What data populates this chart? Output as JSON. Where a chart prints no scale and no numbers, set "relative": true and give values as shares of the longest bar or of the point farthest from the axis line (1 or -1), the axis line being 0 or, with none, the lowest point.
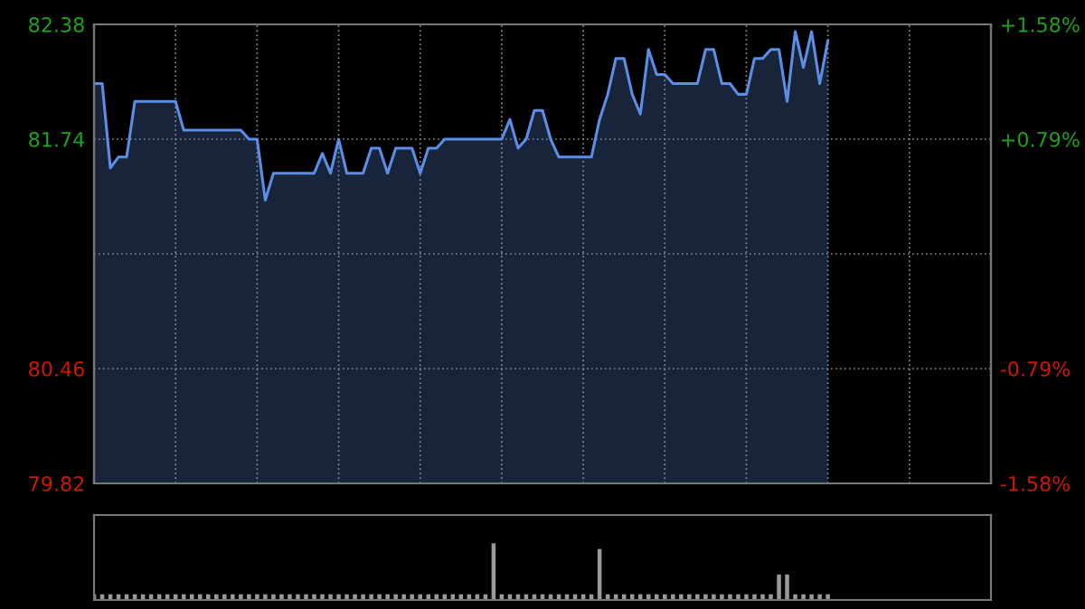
{
  "chart_data": [
    {
      "type": "area",
      "categories": [
        null,
        null,
        null,
        null,
        null,
        null,
        null,
        null,
        null,
        null,
        null,
        null,
        null,
        null,
        null,
        null,
        null,
        null,
        null,
        null,
        null,
        null,
        null,
        null,
        null,
        null,
        null,
        null,
        null,
        null,
        null,
        null,
        null,
        null,
        null,
        null,
        null,
        null,
        null,
        null,
        null,
        null,
        null,
        null,
        null,
        null,
        null,
        null,
        null,
        null,
        null,
        null,
        null,
        null,
        null,
        null,
        null,
        null,
        null,
        null,
        null,
        null,
        null,
        null,
        null,
        null,
        null,
        null,
        null,
        null,
        null,
        null,
        null,
        null,
        null,
        null,
        null,
        null,
        null,
        null,
        null,
        null,
        null,
        null,
        null,
        null,
        null,
        null,
        null,
        null,
        null
      ],
      "series": [
        {
          "color": "#5b8ee6",
          "values": [
            82.05,
            82.05,
            81.58,
            81.64,
            81.64,
            81.95,
            81.95,
            81.95,
            81.95,
            81.95,
            81.95,
            81.79,
            81.79,
            81.79,
            81.79,
            81.79,
            81.79,
            81.79,
            81.79,
            81.74,
            81.74,
            81.4,
            81.55,
            81.55,
            81.55,
            81.55,
            81.55,
            81.55,
            81.66,
            81.55,
            81.74,
            81.55,
            81.55,
            81.55,
            81.69,
            81.69,
            81.55,
            81.69,
            81.69,
            81.69,
            81.55,
            81.69,
            81.69,
            81.74,
            81.74,
            81.74,
            81.74,
            81.74,
            81.74,
            81.74,
            81.74,
            81.85,
            81.69,
            81.74,
            81.9,
            81.9,
            81.74,
            81.64,
            81.64,
            81.64,
            81.64,
            81.64,
            81.85,
            81.99,
            82.19,
            82.19,
            81.99,
            81.88,
            82.24,
            82.1,
            82.1,
            82.05,
            82.05,
            82.05,
            82.05,
            82.24,
            82.24,
            82.05,
            82.05,
            81.99,
            81.99,
            82.19,
            82.19,
            82.24,
            82.24,
            81.95,
            82.34,
            82.14,
            82.34,
            82.05,
            82.29
          ]
        }
      ],
      "ylim": [
        79.82,
        82.38
      ],
      "yticks": [
        79.82,
        80.46,
        {
          "value": 81.1,
          "label": null
        },
        81.74,
        82.38
      ],
      "y2lim": [
        -1.58,
        1.58
      ],
      "y2ticks": [
        {
          "value": -1.58,
          "label": "-1.58%"
        },
        {
          "value": -0.79,
          "label": "-0.79%"
        },
        {
          "value": 0,
          "label": null
        },
        {
          "value": 0.79,
          "label": "+0.79%"
        },
        {
          "value": 1.58,
          "label": "+1.58%"
        }
      ],
      "grid": true,
      "tick_labels": "y"
    },
    {
      "type": "bar",
      "relative": true,
      "tick_labels": false,
      "categories": [
        null,
        null,
        null,
        null,
        null,
        null,
        null,
        null,
        null,
        null,
        null,
        null,
        null,
        null,
        null,
        null,
        null,
        null,
        null,
        null,
        null,
        null,
        null,
        null,
        null,
        null,
        null,
        null,
        null,
        null,
        null,
        null,
        null,
        null,
        null,
        null,
        null,
        null,
        null,
        null,
        null,
        null,
        null,
        null,
        null,
        null,
        null,
        null,
        null,
        null,
        null,
        null,
        null,
        null,
        null,
        null,
        null,
        null,
        null,
        null,
        null,
        null,
        null,
        null,
        null,
        null,
        null,
        null,
        null,
        null,
        null,
        null,
        null,
        null,
        null,
        null,
        null,
        null,
        null,
        null,
        null,
        null,
        null,
        null,
        null,
        null,
        null,
        null,
        null,
        null,
        null
      ],
      "series": [
        {
          "color": "#9a9a9a",
          "values": [
            0.1,
            0.1,
            0.1,
            0.1,
            0.1,
            0.1,
            0.1,
            0.1,
            0.1,
            0.1,
            0.1,
            0.1,
            0.1,
            0.1,
            0.1,
            0.1,
            0.1,
            0.1,
            0.1,
            0.1,
            0.1,
            0.1,
            0.1,
            0.1,
            0.1,
            0.1,
            0.1,
            0.1,
            0.1,
            0.1,
            0.1,
            0.1,
            0.1,
            0.1,
            0.1,
            0.1,
            0.1,
            0.1,
            0.1,
            0.1,
            0.1,
            0.1,
            0.1,
            0.1,
            0.1,
            0.1,
            0.1,
            0.1,
            0.1,
            1.0,
            0.1,
            0.1,
            0.1,
            0.1,
            0.1,
            0.1,
            0.1,
            0.1,
            0.1,
            0.1,
            0.1,
            0.1,
            0.9,
            0.1,
            0.1,
            0.1,
            0.1,
            0.1,
            0.1,
            0.1,
            0.1,
            0.1,
            0.1,
            0.1,
            0.1,
            0.1,
            0.1,
            0.1,
            0.1,
            0.1,
            0.1,
            0.1,
            0.1,
            0.1,
            0.45,
            0.45,
            0.1,
            0.1,
            0.1,
            0.1,
            0.1
          ]
        }
      ]
    }
  ]
}
